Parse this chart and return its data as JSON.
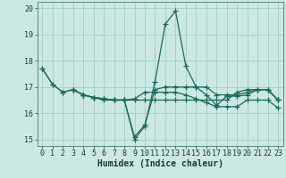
{
  "xlabel": "Humidex (Indice chaleur)",
  "background_color": "#cce8e4",
  "grid_color": "#aacfcc",
  "line_color": "#1a6b5a",
  "xlim": [
    -0.5,
    23.5
  ],
  "ylim": [
    14.75,
    20.25
  ],
  "yticks": [
    15,
    16,
    17,
    18,
    19,
    20
  ],
  "xticks": [
    0,
    1,
    2,
    3,
    4,
    5,
    6,
    7,
    8,
    9,
    10,
    11,
    12,
    13,
    14,
    15,
    16,
    17,
    18,
    19,
    20,
    21,
    22,
    23
  ],
  "series": [
    {
      "x": [
        0,
        1,
        2,
        3,
        4,
        5,
        6,
        7,
        8,
        9,
        10,
        11,
        12,
        13,
        14,
        15,
        16,
        17,
        18,
        19,
        20,
        21,
        22,
        23
      ],
      "y": [
        17.7,
        17.1,
        16.8,
        16.9,
        16.7,
        16.6,
        16.5,
        16.5,
        16.5,
        15.0,
        15.5,
        17.2,
        19.4,
        19.9,
        17.8,
        17.0,
        16.7,
        16.3,
        16.65,
        16.65,
        16.7,
        16.9,
        16.9,
        16.5
      ]
    },
    {
      "x": [
        0,
        1,
        2,
        3,
        4,
        5,
        6,
        7,
        8,
        9,
        10,
        11,
        12,
        13,
        14,
        15,
        16,
        17,
        18,
        19,
        20,
        21,
        22,
        23
      ],
      "y": [
        17.7,
        17.1,
        16.8,
        16.9,
        16.7,
        16.6,
        16.55,
        16.5,
        16.5,
        15.1,
        15.55,
        16.9,
        17.0,
        17.0,
        17.0,
        17.0,
        17.0,
        16.7,
        16.7,
        16.7,
        16.8,
        16.9,
        16.9,
        16.5
      ]
    },
    {
      "x": [
        3,
        4,
        5,
        6,
        7,
        8,
        9,
        10,
        11,
        12,
        13,
        14,
        15,
        16,
        17,
        18,
        19,
        20,
        21,
        22,
        23
      ],
      "y": [
        16.9,
        16.7,
        16.6,
        16.55,
        16.5,
        16.5,
        16.5,
        16.5,
        16.5,
        16.5,
        16.5,
        16.5,
        16.5,
        16.5,
        16.5,
        16.5,
        16.8,
        16.9,
        16.9,
        16.9,
        16.5
      ]
    },
    {
      "x": [
        3,
        4,
        5,
        6,
        7,
        8,
        9,
        10,
        11,
        12,
        13,
        14,
        15,
        16,
        17,
        18,
        19,
        20,
        21,
        22,
        23
      ],
      "y": [
        16.9,
        16.7,
        16.6,
        16.55,
        16.5,
        16.5,
        16.55,
        16.8,
        16.8,
        16.8,
        16.8,
        16.7,
        16.55,
        16.4,
        16.25,
        16.25,
        16.25,
        16.5,
        16.5,
        16.5,
        16.2
      ]
    }
  ]
}
